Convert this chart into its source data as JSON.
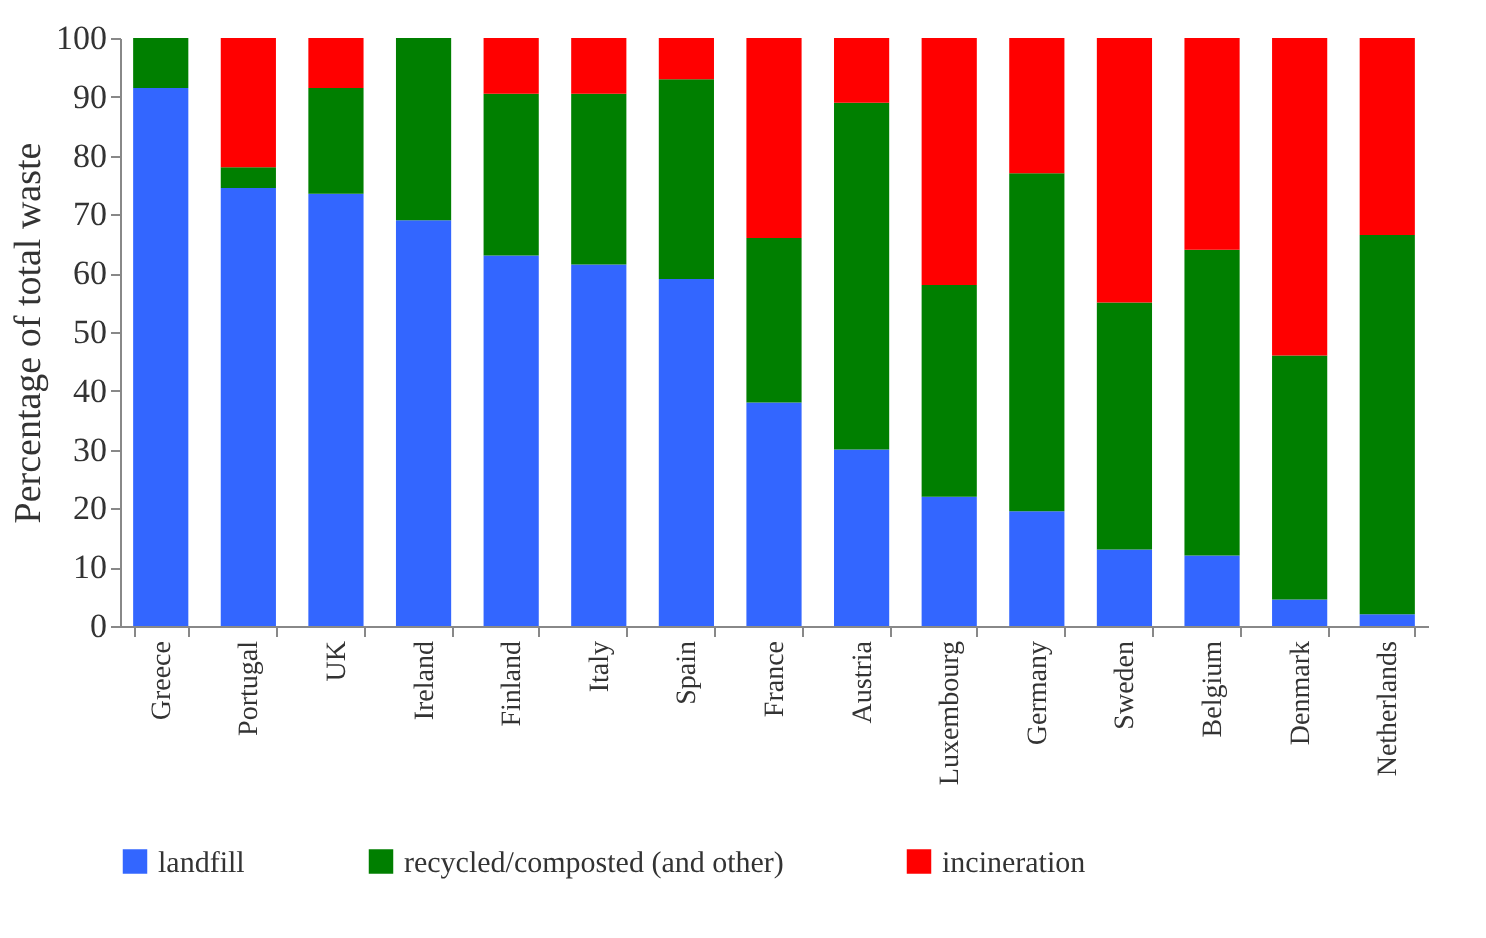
{
  "chart_data": {
    "type": "bar",
    "stacked": true,
    "ylabel": "Percentage of total waste",
    "categories": [
      "Greece",
      "Portugal",
      "UK",
      "Ireland",
      "Finland",
      "Italy",
      "Spain",
      "France",
      "Austria",
      "Luxembourg",
      "Germany",
      "Sweden",
      "Belgium",
      "Denmark",
      "Netherlands"
    ],
    "series": [
      {
        "name": "landfill",
        "color": "#3366ff",
        "values": [
          91.5,
          74.5,
          73.5,
          69,
          63,
          61.5,
          59,
          38,
          30,
          22,
          19.5,
          13,
          12,
          4.5,
          2
        ]
      },
      {
        "name": "recycled/composted (and other)",
        "color": "#007f00",
        "values": [
          8.5,
          3.5,
          18,
          31,
          27.5,
          29,
          34,
          28,
          59,
          36,
          57.5,
          42,
          52,
          41.5,
          64.5
        ]
      },
      {
        "name": "incineration",
        "color": "#ff0000",
        "values": [
          0,
          22,
          8.5,
          0,
          9.5,
          9.5,
          7,
          34,
          11,
          42,
          23,
          45,
          36,
          54,
          33.5
        ]
      }
    ],
    "ylim": [
      0,
      100
    ],
    "yticks": [
      0,
      10,
      20,
      30,
      40,
      50,
      60,
      70,
      80,
      90,
      100
    ],
    "grid": false,
    "legend": "bottom"
  }
}
